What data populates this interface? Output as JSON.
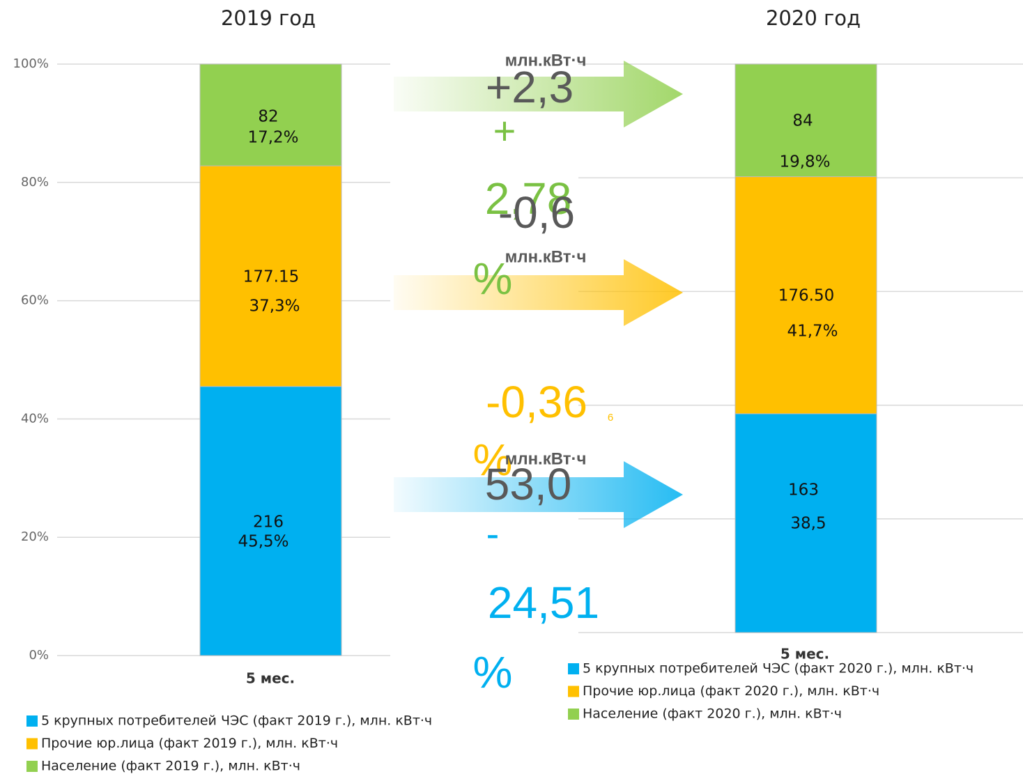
{
  "chart_data": [
    {
      "type": "stacked_bar",
      "title": "2019 год",
      "categories": [
        "5 мес."
      ],
      "ylim": [
        0,
        100
      ],
      "yticks": [
        {
          "value": 0,
          "label": "0%"
        },
        {
          "value": 20,
          "label": "20%"
        },
        {
          "value": 40,
          "label": "40%"
        },
        {
          "value": 60,
          "label": "60%"
        },
        {
          "value": 80,
          "label": "80%"
        },
        {
          "value": 100,
          "label": "100%"
        }
      ],
      "grid": true,
      "series": [
        {
          "name": "5 крупных потребителей ЧЭС (факт 2019 г.), млн. кВт·ч",
          "color": "#00b0f0",
          "values": [
            45.5
          ],
          "value_labels": [
            "45,5%"
          ],
          "amounts": [
            216
          ]
        },
        {
          "name": "Прочие юр.лица (факт 2019 г.), млн. кВт·ч",
          "color": "#ffc000",
          "values": [
            37.3
          ],
          "value_labels": [
            "37,3%"
          ],
          "amounts": [
            {
              "value": 177.15,
              "label": "177.15"
            }
          ]
        },
        {
          "name": "Население (факт 2019 г.), млн. кВт·ч",
          "color": "#92d050",
          "values": [
            17.2
          ],
          "value_labels": [
            "17,2%"
          ],
          "amounts": [
            82
          ]
        }
      ]
    },
    {
      "type": "stacked_bar",
      "title": "2020 год",
      "categories": [
        "5 мес."
      ],
      "ylim": [
        0,
        100
      ],
      "yticks": [
        0,
        20,
        40,
        60,
        80,
        100
      ],
      "grid": true,
      "series": [
        {
          "name": "5 крупных потребителей ЧЭС (факт 2020 г.), млн. кВт·ч",
          "color": "#00b0f0",
          "values": [
            38.5
          ],
          "value_labels": [
            "38,5"
          ],
          "amounts": [
            163
          ]
        },
        {
          "name": "Прочие юр.лица (факт 2020 г.), млн. кВт·ч",
          "color": "#ffc000",
          "values": [
            41.7
          ],
          "value_labels": [
            "41,7%"
          ],
          "amounts": [
            {
              "value": 176.5,
              "label": "176.50"
            }
          ]
        },
        {
          "name": "Население (факт 2020 г.), млн. кВт·ч",
          "color": "#92d050",
          "values": [
            19.8
          ],
          "value_labels": [
            "19,8%"
          ],
          "amounts": [
            84
          ]
        }
      ]
    }
  ],
  "arrows": [
    {
      "color": "#92d050"
    },
    {
      "color": "#ffc000"
    },
    {
      "color": "#00b0f0"
    }
  ],
  "annotations": [
    {
      "text": "млн.кВт·ч",
      "color": "#595959"
    },
    {
      "text": "+2,3",
      "color": "#595959"
    },
    {
      "text": "+",
      "color": "#7ac143"
    },
    {
      "text": "2,78",
      "color": "#7ac143"
    },
    {
      "text": "-0,6",
      "color": "#595959"
    },
    {
      "text": "млн.кВт·ч",
      "color": "#595959"
    },
    {
      "text": "%",
      "color": "#7ac143"
    },
    {
      "text": "-0,36",
      "color": "#ffc000"
    },
    {
      "text": "6",
      "color": "#ffc000"
    },
    {
      "text": "%",
      "color": "#ffc000"
    },
    {
      "text": "млн.кВт·ч",
      "color": "#595959"
    },
    {
      "text": "53,0",
      "color": "#595959"
    },
    {
      "text": "-",
      "color": "#00b0f0"
    },
    {
      "text": "24,51",
      "color": "#00b0f0"
    },
    {
      "text": "%",
      "color": "#00b0f0"
    }
  ]
}
